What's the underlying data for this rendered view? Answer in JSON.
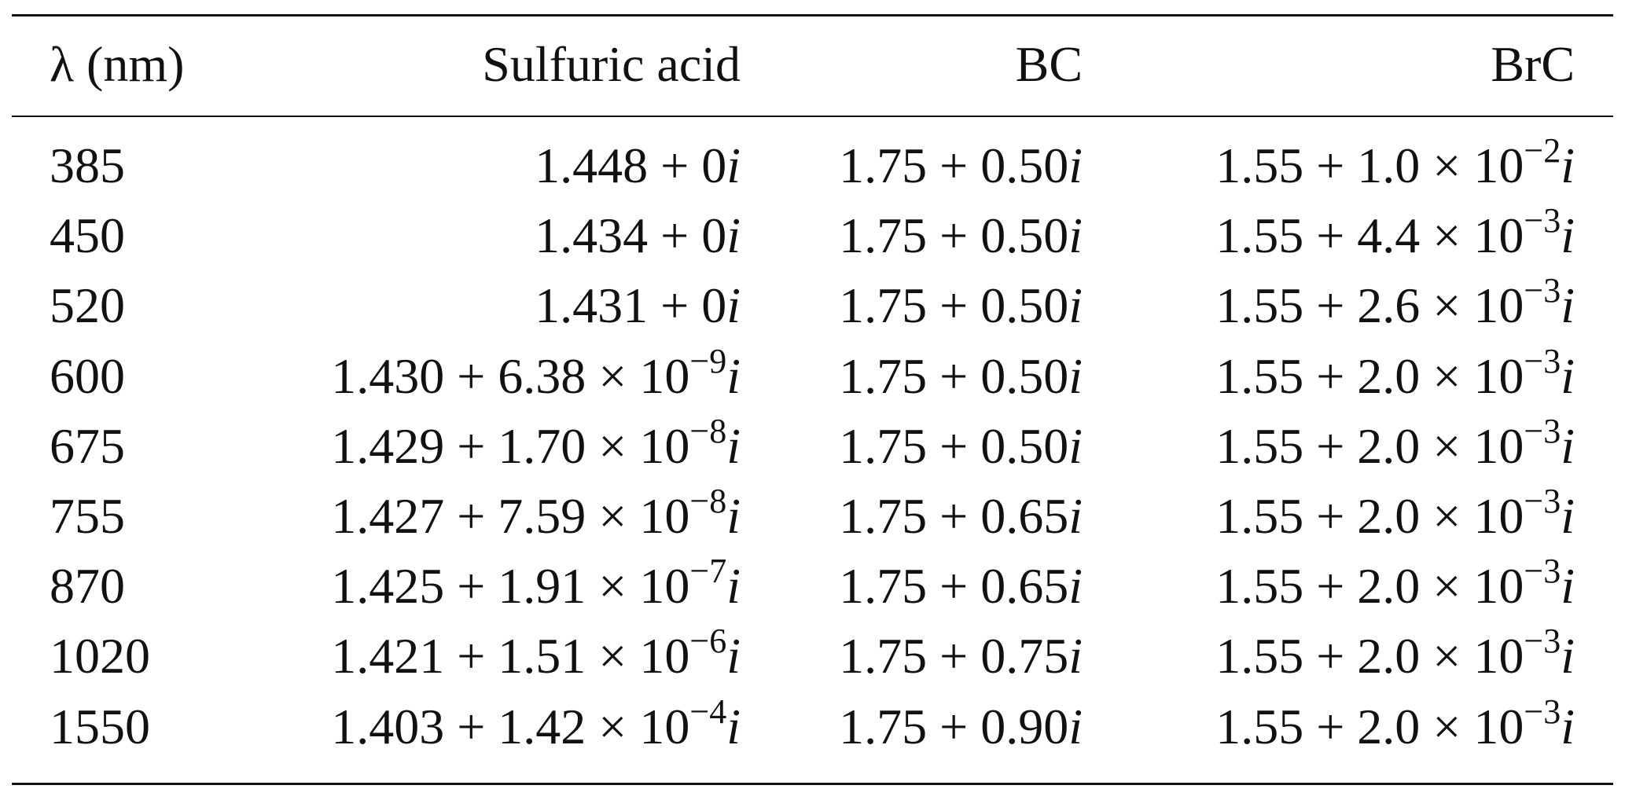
{
  "table": {
    "header": [
      "λ (nm)",
      "Sulfuric acid",
      "BC",
      "BrC"
    ],
    "rows": [
      [
        "385",
        {
          "text": "1.448 + 0",
          "italic": "i"
        },
        {
          "text": "1.75 + 0.50",
          "italic": "i"
        },
        {
          "text": "1.55 + 1.0 × 10",
          "sup": "−2",
          "italic": "i"
        }
      ],
      [
        "450",
        {
          "text": "1.434 + 0",
          "italic": "i"
        },
        {
          "text": "1.75 + 0.50",
          "italic": "i"
        },
        {
          "text": "1.55 + 4.4 × 10",
          "sup": "−3",
          "italic": "i"
        }
      ],
      [
        "520",
        {
          "text": "1.431 + 0",
          "italic": "i"
        },
        {
          "text": "1.75 + 0.50",
          "italic": "i"
        },
        {
          "text": "1.55 + 2.6 × 10",
          "sup": "−3",
          "italic": "i"
        }
      ],
      [
        "600",
        {
          "text": "1.430 + 6.38 × 10",
          "sup": "−9",
          "italic": "i"
        },
        {
          "text": "1.75 + 0.50",
          "italic": "i"
        },
        {
          "text": "1.55 + 2.0 × 10",
          "sup": "−3",
          "italic": "i"
        }
      ],
      [
        "675",
        {
          "text": "1.429 + 1.70 × 10",
          "sup": "−8",
          "italic": "i"
        },
        {
          "text": "1.75 + 0.50",
          "italic": "i"
        },
        {
          "text": "1.55 + 2.0 × 10",
          "sup": "−3",
          "italic": "i"
        }
      ],
      [
        "755",
        {
          "text": "1.427 + 7.59 × 10",
          "sup": "−8",
          "italic": "i"
        },
        {
          "text": "1.75 + 0.65",
          "italic": "i"
        },
        {
          "text": "1.55 + 2.0 × 10",
          "sup": "−3",
          "italic": "i"
        }
      ],
      [
        "870",
        {
          "text": "1.425 + 1.91 × 10",
          "sup": "−7",
          "italic": "i"
        },
        {
          "text": "1.75 + 0.65",
          "italic": "i"
        },
        {
          "text": "1.55 + 2.0 × 10",
          "sup": "−3",
          "italic": "i"
        }
      ],
      [
        "1020",
        {
          "text": "1.421 + 1.51 × 10",
          "sup": "−6",
          "italic": "i"
        },
        {
          "text": "1.75 + 0.75",
          "italic": "i"
        },
        {
          "text": "1.55 + 2.0 × 10",
          "sup": "−3",
          "italic": "i"
        }
      ],
      [
        "1550",
        {
          "text": "1.403 + 1.42 × 10",
          "sup": "−4",
          "italic": "i"
        },
        {
          "text": "1.75 + 0.90",
          "italic": "i"
        },
        {
          "text": "1.55 + 2.0 × 10",
          "sup": "−3",
          "italic": "i"
        }
      ]
    ]
  }
}
